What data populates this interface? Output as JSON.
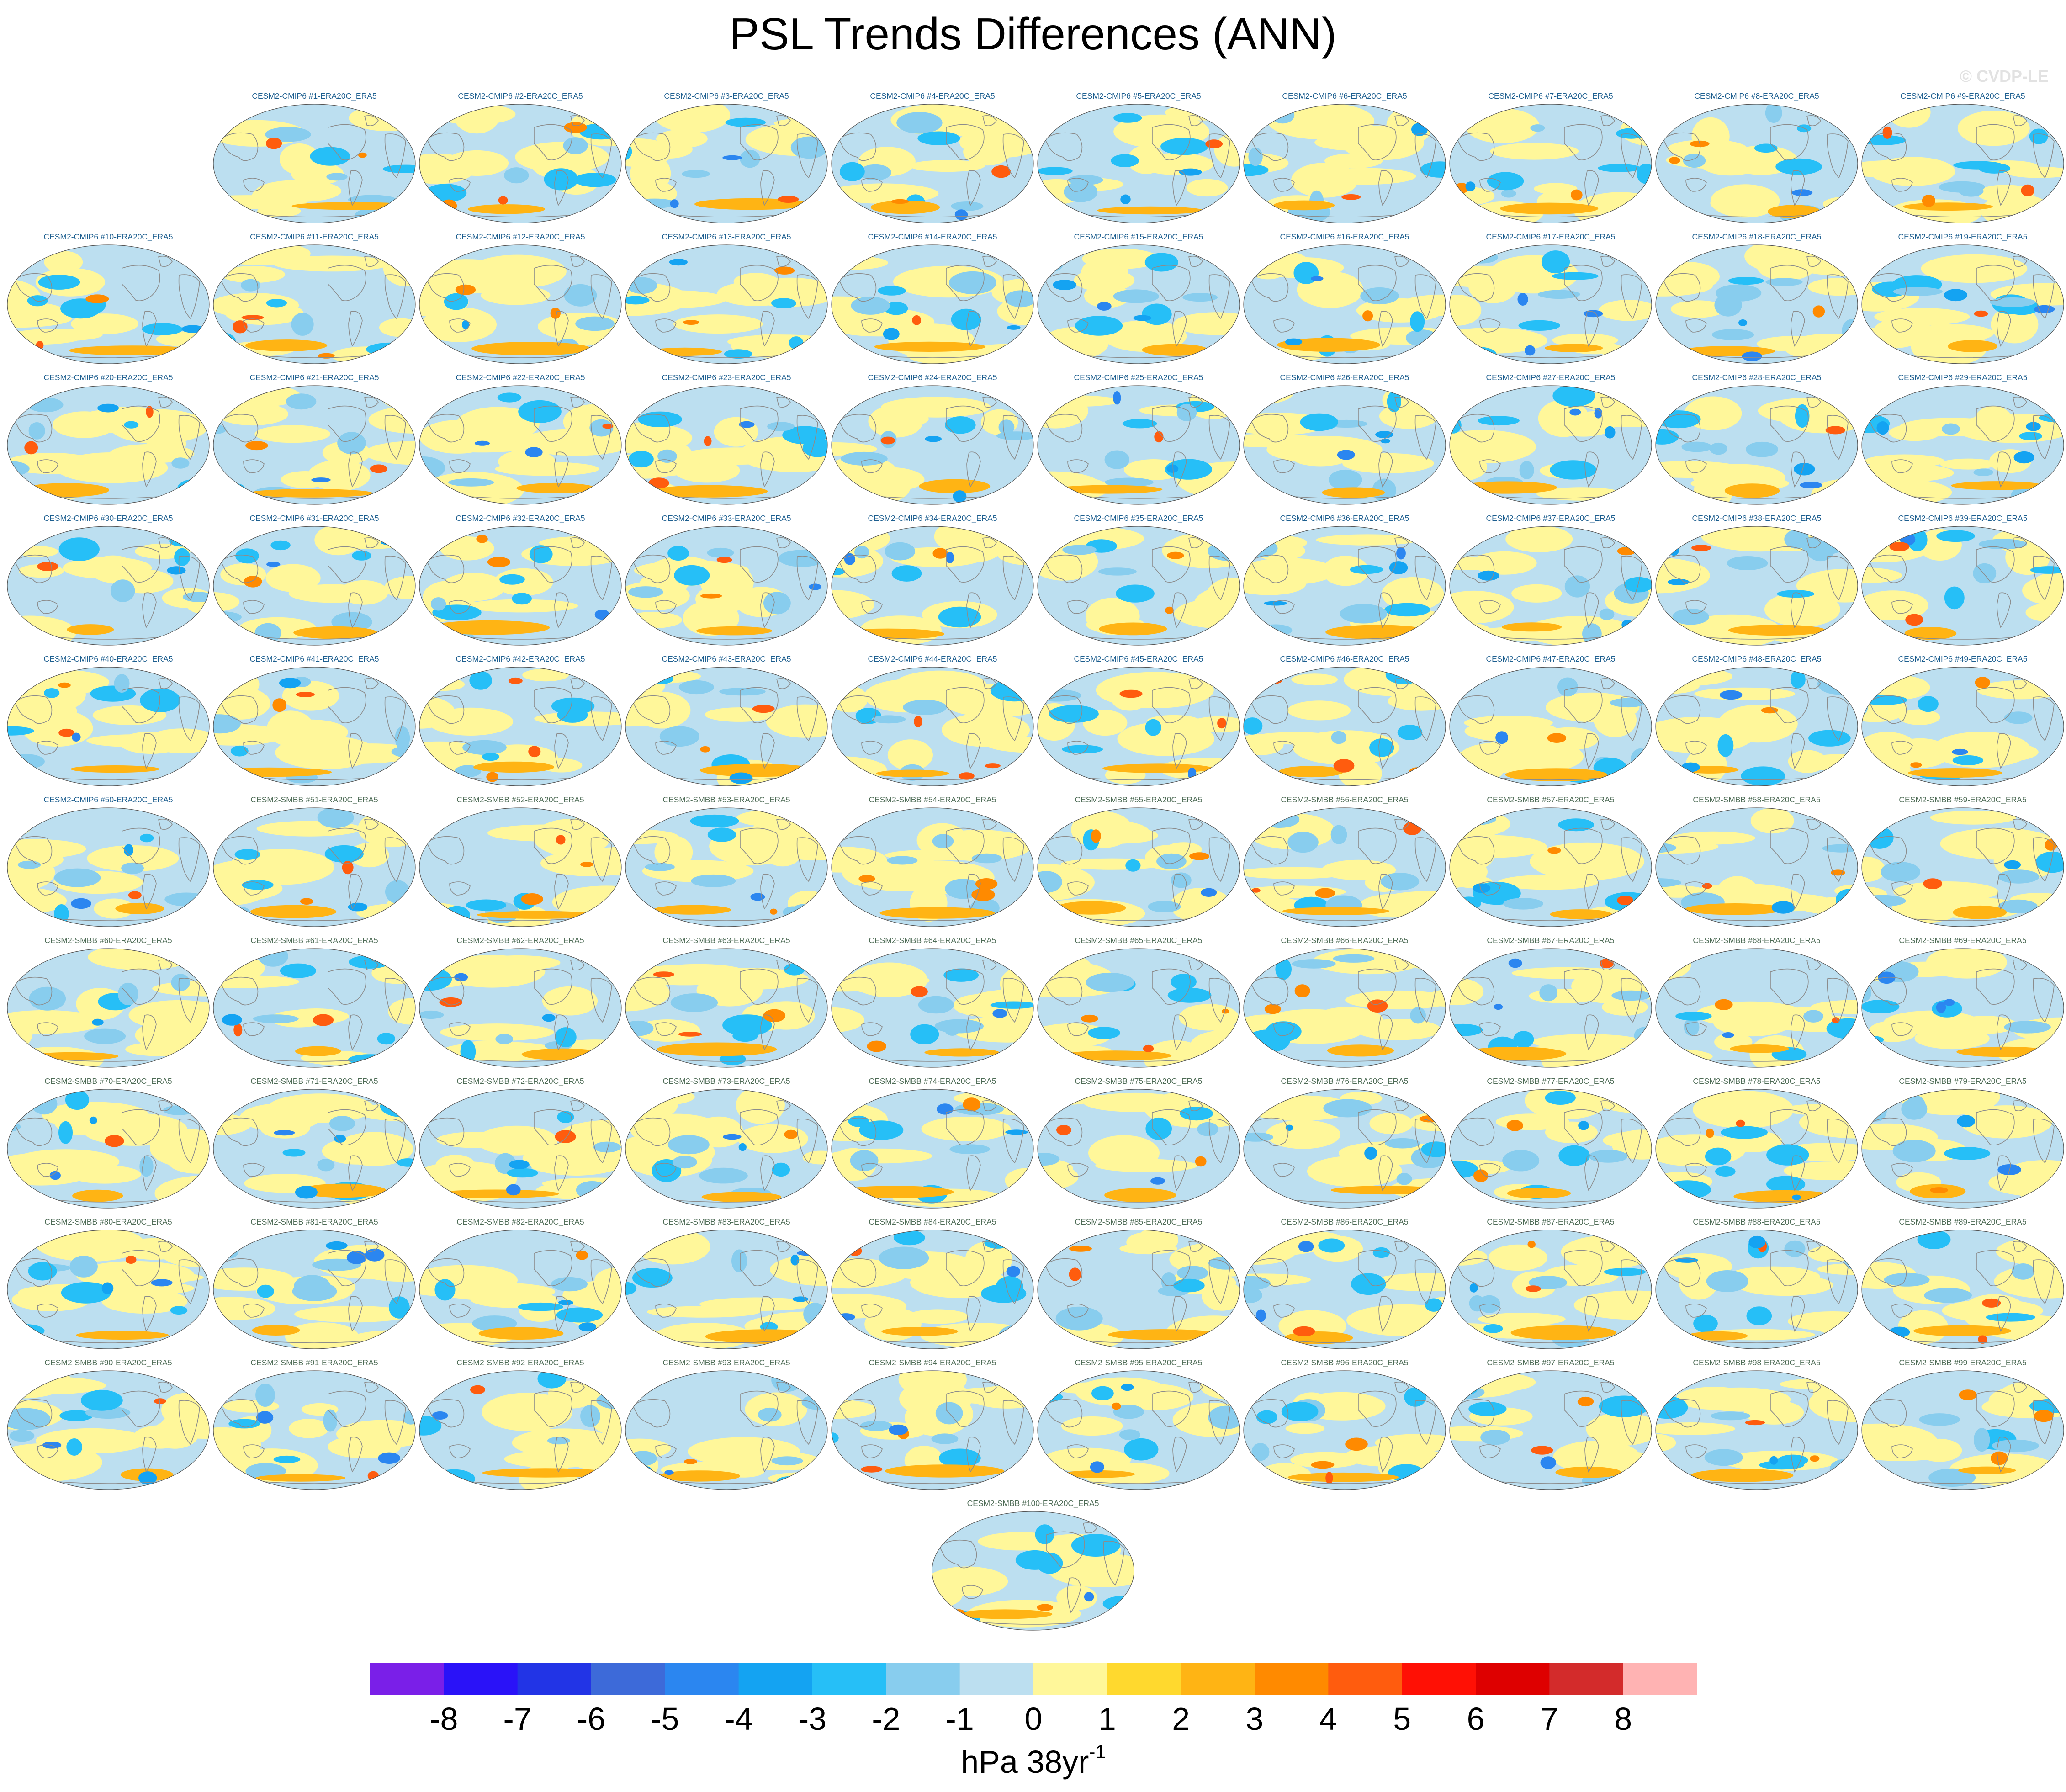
{
  "title": "PSL Trends Differences (ANN)",
  "watermark": "© CVDP-LE",
  "colors": {
    "cmip_title": "#1c5e8f",
    "smbb_title": "#4d6b55",
    "coastline": "#8c8c8c"
  },
  "chart_data": {
    "type": "heatmap",
    "description_fields": [
      "panels",
      "colorbar"
    ],
    "projection": "robinson-like global map, Pacific-centered",
    "panels": [
      {
        "label": "CESM2-CMIP6 #1-ERA20C_ERA5"
      },
      {
        "label": "CESM2-CMIP6 #2-ERA20C_ERA5"
      },
      {
        "label": "CESM2-CMIP6 #3-ERA20C_ERA5"
      },
      {
        "label": "CESM2-CMIP6 #4-ERA20C_ERA5"
      },
      {
        "label": "CESM2-CMIP6 #5-ERA20C_ERA5"
      },
      {
        "label": "CESM2-CMIP6 #6-ERA20C_ERA5"
      },
      {
        "label": "CESM2-CMIP6 #7-ERA20C_ERA5"
      },
      {
        "label": "CESM2-CMIP6 #8-ERA20C_ERA5"
      },
      {
        "label": "CESM2-CMIP6 #9-ERA20C_ERA5"
      },
      {
        "label": "CESM2-CMIP6 #10-ERA20C_ERA5"
      },
      {
        "label": "CESM2-CMIP6 #11-ERA20C_ERA5"
      },
      {
        "label": "CESM2-CMIP6 #12-ERA20C_ERA5"
      },
      {
        "label": "CESM2-CMIP6 #13-ERA20C_ERA5"
      },
      {
        "label": "CESM2-CMIP6 #14-ERA20C_ERA5"
      },
      {
        "label": "CESM2-CMIP6 #15-ERA20C_ERA5"
      },
      {
        "label": "CESM2-CMIP6 #16-ERA20C_ERA5"
      },
      {
        "label": "CESM2-CMIP6 #17-ERA20C_ERA5"
      },
      {
        "label": "CESM2-CMIP6 #18-ERA20C_ERA5"
      },
      {
        "label": "CESM2-CMIP6 #19-ERA20C_ERA5"
      },
      {
        "label": "CESM2-CMIP6 #20-ERA20C_ERA5"
      },
      {
        "label": "CESM2-CMIP6 #21-ERA20C_ERA5"
      },
      {
        "label": "CESM2-CMIP6 #22-ERA20C_ERA5"
      },
      {
        "label": "CESM2-CMIP6 #23-ERA20C_ERA5"
      },
      {
        "label": "CESM2-CMIP6 #24-ERA20C_ERA5"
      },
      {
        "label": "CESM2-CMIP6 #25-ERA20C_ERA5"
      },
      {
        "label": "CESM2-CMIP6 #26-ERA20C_ERA5"
      },
      {
        "label": "CESM2-CMIP6 #27-ERA20C_ERA5"
      },
      {
        "label": "CESM2-CMIP6 #28-ERA20C_ERA5"
      },
      {
        "label": "CESM2-CMIP6 #29-ERA20C_ERA5"
      },
      {
        "label": "CESM2-CMIP6 #30-ERA20C_ERA5"
      },
      {
        "label": "CESM2-CMIP6 #31-ERA20C_ERA5"
      },
      {
        "label": "CESM2-CMIP6 #32-ERA20C_ERA5"
      },
      {
        "label": "CESM2-CMIP6 #33-ERA20C_ERA5"
      },
      {
        "label": "CESM2-CMIP6 #34-ERA20C_ERA5"
      },
      {
        "label": "CESM2-CMIP6 #35-ERA20C_ERA5"
      },
      {
        "label": "CESM2-CMIP6 #36-ERA20C_ERA5"
      },
      {
        "label": "CESM2-CMIP6 #37-ERA20C_ERA5"
      },
      {
        "label": "CESM2-CMIP6 #38-ERA20C_ERA5"
      },
      {
        "label": "CESM2-CMIP6 #39-ERA20C_ERA5"
      },
      {
        "label": "CESM2-CMIP6 #40-ERA20C_ERA5"
      },
      {
        "label": "CESM2-CMIP6 #41-ERA20C_ERA5"
      },
      {
        "label": "CESM2-CMIP6 #42-ERA20C_ERA5"
      },
      {
        "label": "CESM2-CMIP6 #43-ERA20C_ERA5"
      },
      {
        "label": "CESM2-CMIP6 #44-ERA20C_ERA5"
      },
      {
        "label": "CESM2-CMIP6 #45-ERA20C_ERA5"
      },
      {
        "label": "CESM2-CMIP6 #46-ERA20C_ERA5"
      },
      {
        "label": "CESM2-CMIP6 #47-ERA20C_ERA5"
      },
      {
        "label": "CESM2-CMIP6 #48-ERA20C_ERA5"
      },
      {
        "label": "CESM2-CMIP6 #49-ERA20C_ERA5"
      },
      {
        "label": "CESM2-CMIP6 #50-ERA20C_ERA5"
      },
      {
        "label": "CESM2-SMBB #51-ERA20C_ERA5"
      },
      {
        "label": "CESM2-SMBB #52-ERA20C_ERA5"
      },
      {
        "label": "CESM2-SMBB #53-ERA20C_ERA5"
      },
      {
        "label": "CESM2-SMBB #54-ERA20C_ERA5"
      },
      {
        "label": "CESM2-SMBB #55-ERA20C_ERA5"
      },
      {
        "label": "CESM2-SMBB #56-ERA20C_ERA5"
      },
      {
        "label": "CESM2-SMBB #57-ERA20C_ERA5"
      },
      {
        "label": "CESM2-SMBB #58-ERA20C_ERA5"
      },
      {
        "label": "CESM2-SMBB #59-ERA20C_ERA5"
      },
      {
        "label": "CESM2-SMBB #60-ERA20C_ERA5"
      },
      {
        "label": "CESM2-SMBB #61-ERA20C_ERA5"
      },
      {
        "label": "CESM2-SMBB #62-ERA20C_ERA5"
      },
      {
        "label": "CESM2-SMBB #63-ERA20C_ERA5"
      },
      {
        "label": "CESM2-SMBB #64-ERA20C_ERA5"
      },
      {
        "label": "CESM2-SMBB #65-ERA20C_ERA5"
      },
      {
        "label": "CESM2-SMBB #66-ERA20C_ERA5"
      },
      {
        "label": "CESM2-SMBB #67-ERA20C_ERA5"
      },
      {
        "label": "CESM2-SMBB #68-ERA20C_ERA5"
      },
      {
        "label": "CESM2-SMBB #69-ERA20C_ERA5"
      },
      {
        "label": "CESM2-SMBB #70-ERA20C_ERA5"
      },
      {
        "label": "CESM2-SMBB #71-ERA20C_ERA5"
      },
      {
        "label": "CESM2-SMBB #72-ERA20C_ERA5"
      },
      {
        "label": "CESM2-SMBB #73-ERA20C_ERA5"
      },
      {
        "label": "CESM2-SMBB #74-ERA20C_ERA5"
      },
      {
        "label": "CESM2-SMBB #75-ERA20C_ERA5"
      },
      {
        "label": "CESM2-SMBB #76-ERA20C_ERA5"
      },
      {
        "label": "CESM2-SMBB #77-ERA20C_ERA5"
      },
      {
        "label": "CESM2-SMBB #78-ERA20C_ERA5"
      },
      {
        "label": "CESM2-SMBB #79-ERA20C_ERA5"
      },
      {
        "label": "CESM2-SMBB #80-ERA20C_ERA5"
      },
      {
        "label": "CESM2-SMBB #81-ERA20C_ERA5"
      },
      {
        "label": "CESM2-SMBB #82-ERA20C_ERA5"
      },
      {
        "label": "CESM2-SMBB #83-ERA20C_ERA5"
      },
      {
        "label": "CESM2-SMBB #84-ERA20C_ERA5"
      },
      {
        "label": "CESM2-SMBB #85-ERA20C_ERA5"
      },
      {
        "label": "CESM2-SMBB #86-ERA20C_ERA5"
      },
      {
        "label": "CESM2-SMBB #87-ERA20C_ERA5"
      },
      {
        "label": "CESM2-SMBB #88-ERA20C_ERA5"
      },
      {
        "label": "CESM2-SMBB #89-ERA20C_ERA5"
      },
      {
        "label": "CESM2-SMBB #90-ERA20C_ERA5"
      },
      {
        "label": "CESM2-SMBB #91-ERA20C_ERA5"
      },
      {
        "label": "CESM2-SMBB #92-ERA20C_ERA5"
      },
      {
        "label": "CESM2-SMBB #93-ERA20C_ERA5"
      },
      {
        "label": "CESM2-SMBB #94-ERA20C_ERA5"
      },
      {
        "label": "CESM2-SMBB #95-ERA20C_ERA5"
      },
      {
        "label": "CESM2-SMBB #96-ERA20C_ERA5"
      },
      {
        "label": "CESM2-SMBB #97-ERA20C_ERA5"
      },
      {
        "label": "CESM2-SMBB #98-ERA20C_ERA5"
      },
      {
        "label": "CESM2-SMBB #99-ERA20C_ERA5"
      },
      {
        "label": "CESM2-SMBB #100-ERA20C_ERA5"
      }
    ],
    "colorbar": {
      "levels": [
        -8,
        -7,
        -6,
        -5,
        -4,
        -3,
        -2,
        -1,
        0,
        1,
        2,
        3,
        4,
        5,
        6,
        7,
        8
      ],
      "colors": [
        "#7a1fe8",
        "#2a12f8",
        "#2234e6",
        "#3d6ad9",
        "#2b86f0",
        "#14a3f2",
        "#26bff7",
        "#88cdee",
        "#bcdff0",
        "#fff79a",
        "#ffd92e",
        "#ffb414",
        "#ff8a00",
        "#ff5c0e",
        "#ff1005",
        "#de0000",
        "#d32b2b",
        "#ffb3b3"
      ],
      "units_base": "hPa 38yr",
      "units_exponent": "-1"
    }
  }
}
